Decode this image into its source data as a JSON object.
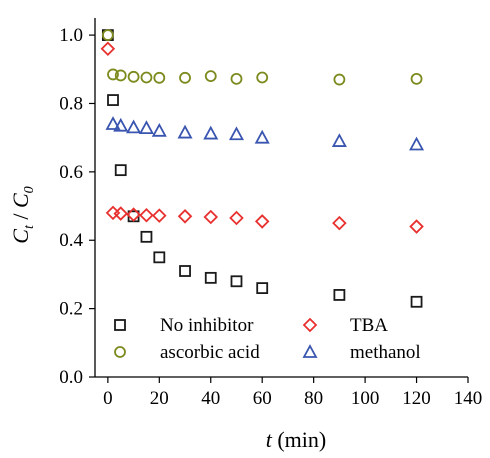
{
  "chart_data": {
    "type": "scatter",
    "xlabel_var": "t",
    "xlabel_unit": " (min)",
    "ylabel_num": "C",
    "ylabel_num_sub": "t",
    "ylabel_slash": " / ",
    "ylabel_den": "C",
    "ylabel_den_sub": "0",
    "xlim": [
      -5,
      140
    ],
    "ylim": [
      0.0,
      1.05
    ],
    "x_ticks": [
      0,
      20,
      40,
      60,
      80,
      100,
      120,
      140
    ],
    "y_ticks": [
      0.0,
      0.2,
      0.4,
      0.6,
      0.8,
      1.0
    ],
    "y_tick_labels": [
      "0.0",
      "0.2",
      "0.4",
      "0.6",
      "0.8",
      "1.0"
    ],
    "series": [
      {
        "name": "No inhibitor",
        "marker": "square",
        "color": "#1a1a1a",
        "x": [
          0,
          2,
          5,
          10,
          15,
          20,
          30,
          40,
          50,
          60,
          90,
          120
        ],
        "y": [
          1.0,
          0.81,
          0.605,
          0.47,
          0.41,
          0.35,
          0.31,
          0.29,
          0.28,
          0.26,
          0.24,
          0.22
        ]
      },
      {
        "name": "TBA",
        "marker": "diamond",
        "color": "#e8312f",
        "x": [
          0,
          2,
          5,
          10,
          15,
          20,
          30,
          40,
          50,
          60,
          90,
          120
        ],
        "y": [
          0.96,
          0.48,
          0.478,
          0.475,
          0.473,
          0.472,
          0.47,
          0.468,
          0.465,
          0.455,
          0.45,
          0.44
        ]
      },
      {
        "name": "ascorbic acid",
        "marker": "circle",
        "color": "#7d8a1e",
        "x": [
          0,
          2,
          5,
          10,
          15,
          20,
          30,
          40,
          50,
          60,
          90,
          120
        ],
        "y": [
          1.0,
          0.885,
          0.882,
          0.878,
          0.876,
          0.875,
          0.875,
          0.88,
          0.872,
          0.876,
          0.87,
          0.872
        ]
      },
      {
        "name": "methanol",
        "marker": "triangle",
        "color": "#3a55b0",
        "x": [
          2,
          5,
          10,
          15,
          20,
          30,
          40,
          50,
          60,
          90,
          120
        ],
        "y": [
          0.74,
          0.735,
          0.73,
          0.728,
          0.72,
          0.715,
          0.712,
          0.71,
          0.7,
          0.69,
          0.68
        ]
      }
    ],
    "legend_order": [
      0,
      1,
      2,
      3
    ],
    "legend_placement": "bottom-center",
    "grid": false
  }
}
